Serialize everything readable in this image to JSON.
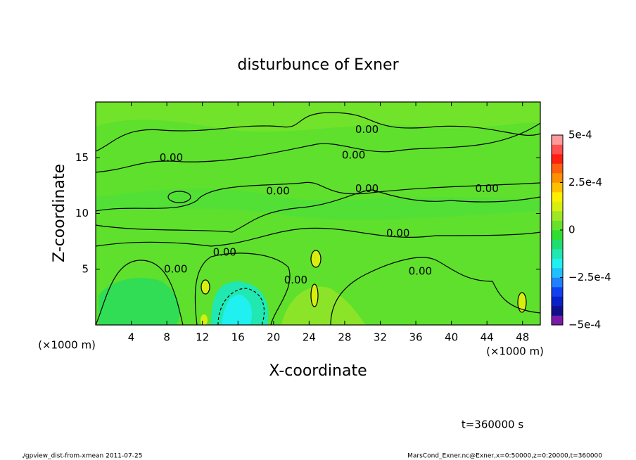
{
  "chart_data": {
    "type": "contour",
    "title": "disturbunce of Exner",
    "x_label": "X-coordinate",
    "y_label": "Z-coordinate",
    "x_unit": "(×1000 m)",
    "xlim": [
      0,
      50
    ],
    "ylim": [
      0,
      20
    ],
    "xticks": [
      4,
      8,
      12,
      16,
      20,
      24,
      28,
      32,
      36,
      40,
      44,
      48
    ],
    "yticks": [
      5,
      10,
      15
    ],
    "field_color": "#5ee02c",
    "contour_labels": [
      {
        "text": "0.00",
        "x": 9,
        "y": 5
      },
      {
        "text": "0.00",
        "x": 14.5,
        "y": 6.5
      },
      {
        "text": "0.00",
        "x": 8.5,
        "y": 15
      },
      {
        "text": "0.00",
        "x": 20.5,
        "y": 12
      },
      {
        "text": "0.00",
        "x": 30.5,
        "y": 17.5
      },
      {
        "text": "0.00",
        "x": 29,
        "y": 15.2
      },
      {
        "text": "0.00",
        "x": 30.5,
        "y": 12.2
      },
      {
        "text": "0.00",
        "x": 34,
        "y": 8.2
      },
      {
        "text": "0.00",
        "x": 22.5,
        "y": 4
      },
      {
        "text": "0.00",
        "x": 36.5,
        "y": 4.8
      },
      {
        "text": "0.00",
        "x": 44,
        "y": 12.2
      }
    ],
    "colorbar": {
      "clim": [
        -0.0005,
        0.0005
      ],
      "colors": [
        "#7a1aa8",
        "#10108a",
        "#0a20c8",
        "#1040f0",
        "#2080ff",
        "#20c0ff",
        "#20f0f0",
        "#20e8b0",
        "#20dd70",
        "#30dd30",
        "#66e22a",
        "#a0e626",
        "#d8ee10",
        "#ffee00",
        "#ffc000",
        "#ff9000",
        "#ff6010",
        "#ff2010",
        "#ff5050",
        "#ff9a9a"
      ],
      "ticks": [
        {
          "value": 0.0005,
          "label": "5e-4"
        },
        {
          "value": 0.00025,
          "label": "2.5e-4"
        },
        0,
        {
          "value": -0.00025,
          "label": "−2.5e-4"
        },
        {
          "value": -0.0005,
          "label": "−5e-4"
        }
      ]
    },
    "time_label": "t=360000 s",
    "footer_left": "./gpview_dist-from-xmean  2011-07-25",
    "footer_right": "MarsCond_Exner.nc@Exner,x=0:50000,z=0:20000,t=360000"
  }
}
